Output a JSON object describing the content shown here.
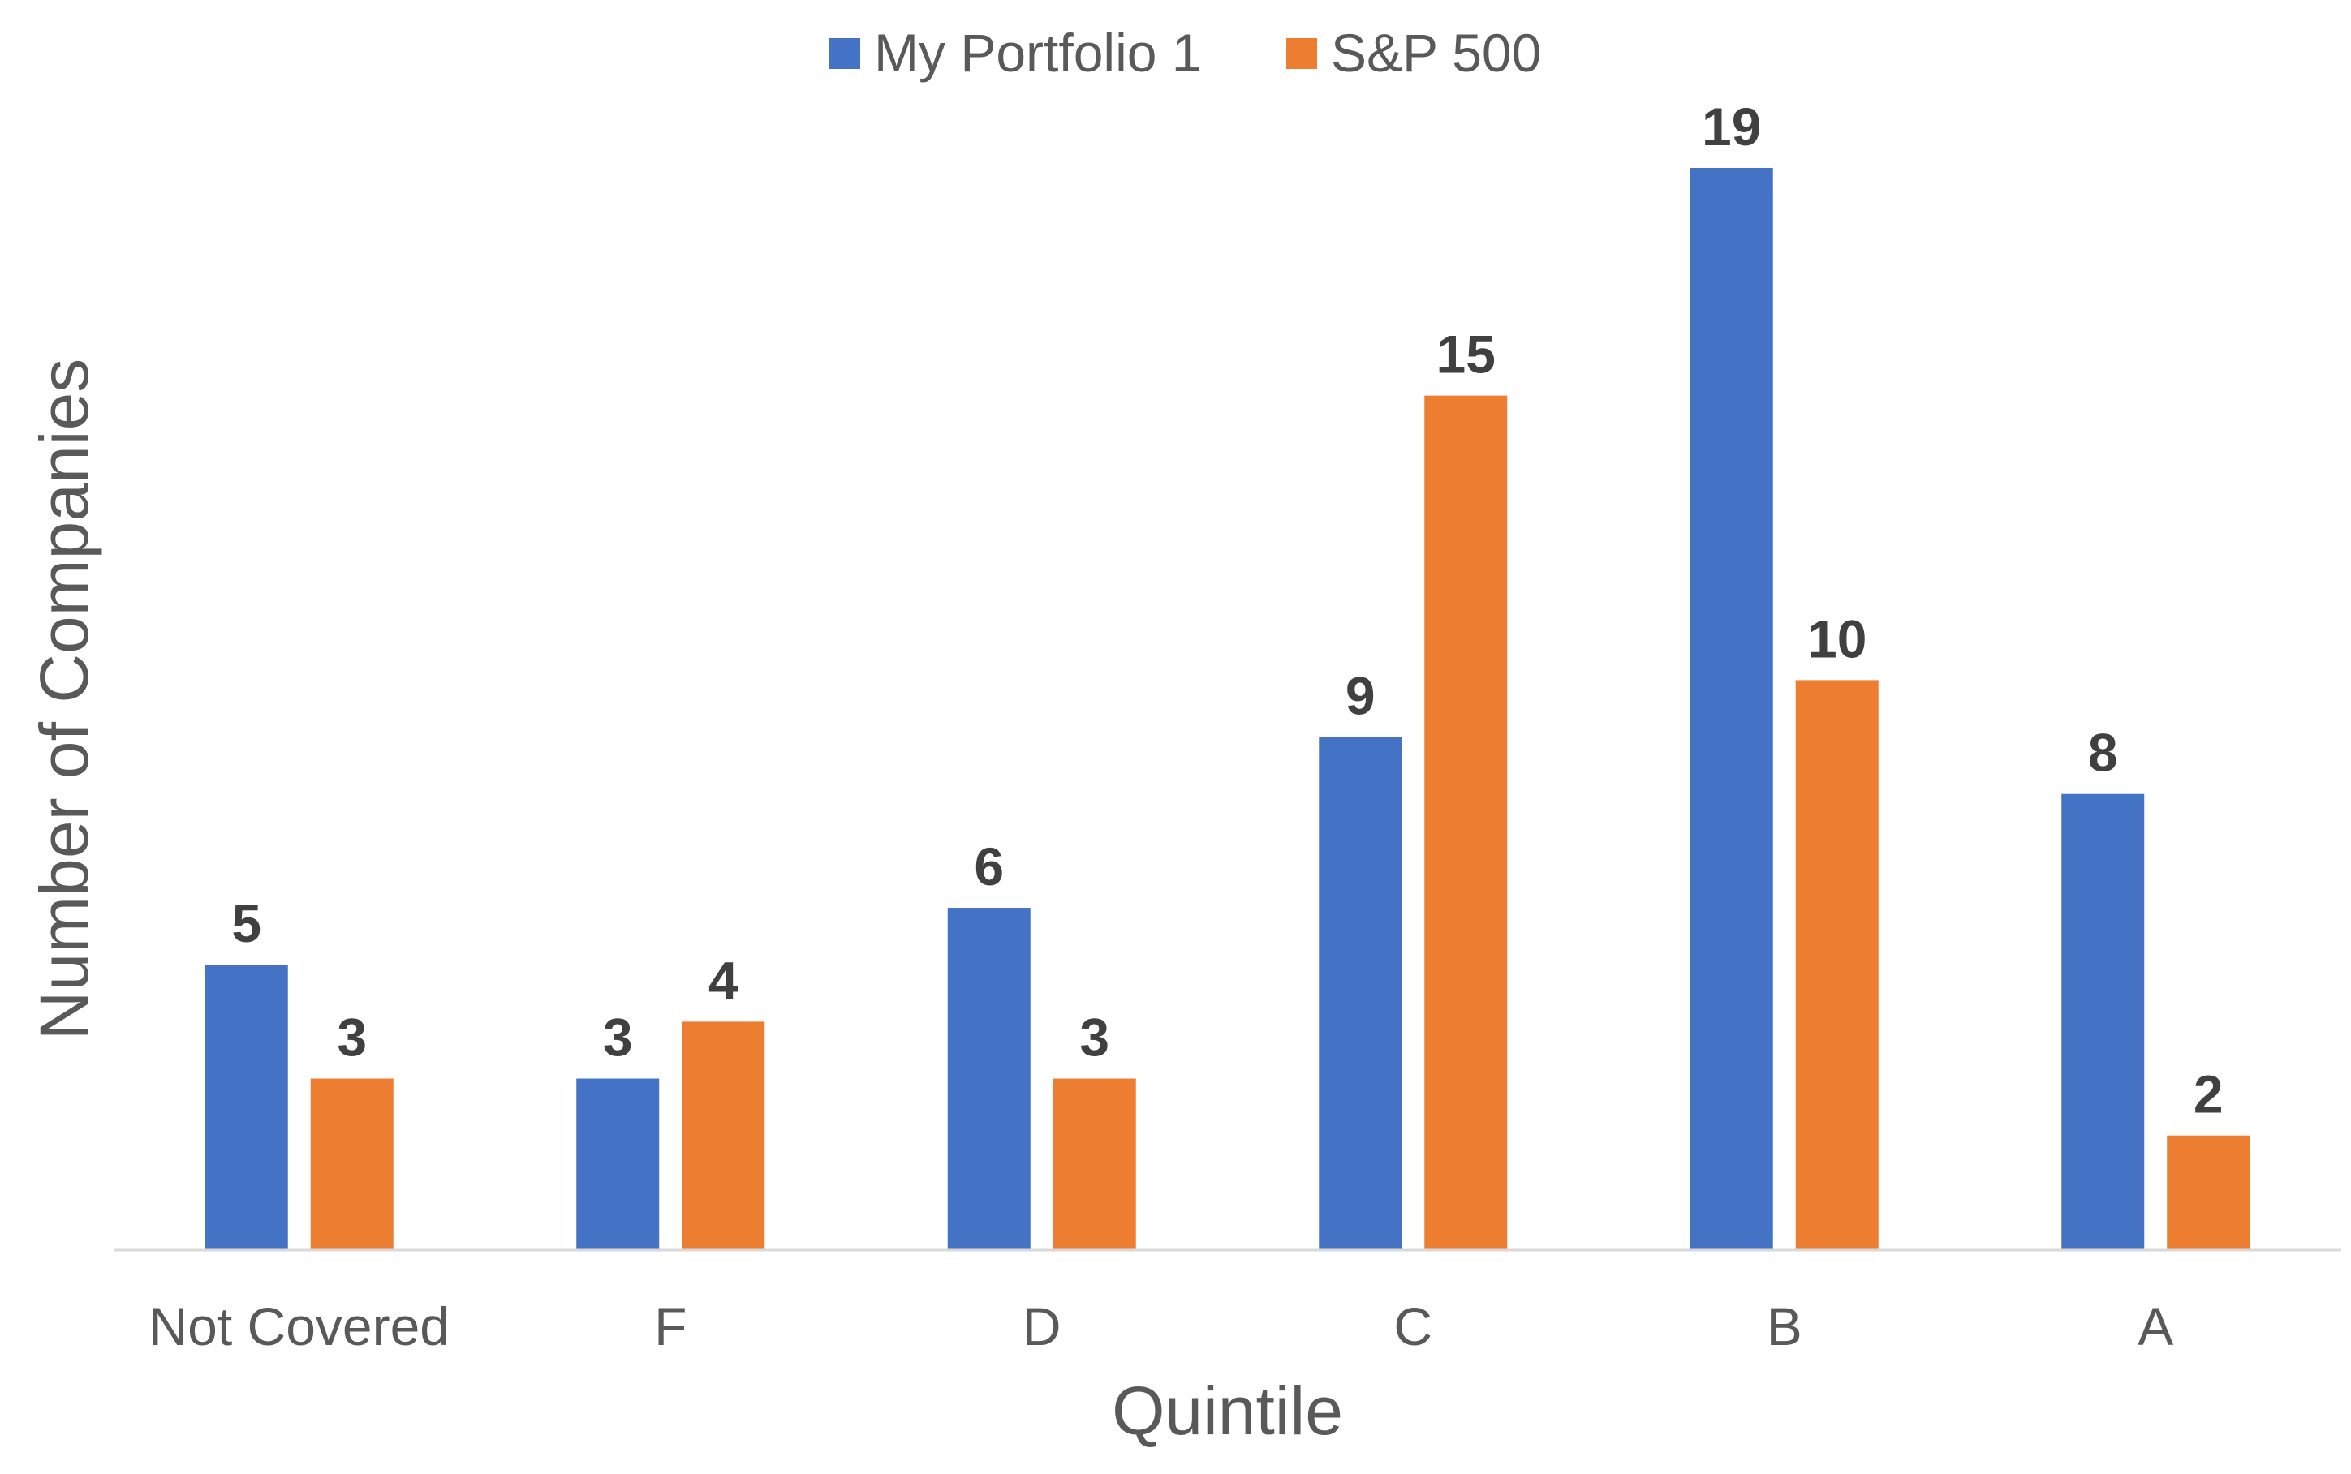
{
  "chart_data": {
    "type": "bar",
    "title": "",
    "xlabel": "Quintile",
    "ylabel": "Number of Companies",
    "categories": [
      "Not Covered",
      "F",
      "D",
      "C",
      "B",
      "A"
    ],
    "series": [
      {
        "name": "My Portfolio 1",
        "color": "#4472C4",
        "values": [
          5,
          3,
          6,
          9,
          19,
          8
        ]
      },
      {
        "name": "S&P 500",
        "color": "#ED7D31",
        "values": [
          3,
          4,
          3,
          15,
          10,
          2
        ]
      }
    ],
    "ylim": [
      0,
      19
    ],
    "grid": false,
    "data_labels": true,
    "legend_position": "top-center"
  }
}
